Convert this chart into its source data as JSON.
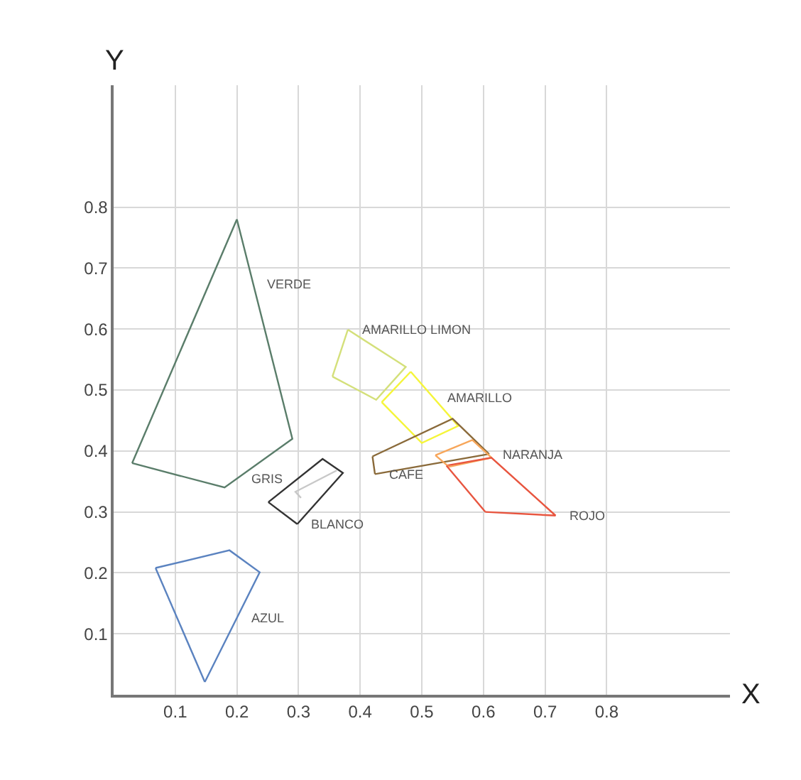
{
  "chart_data": {
    "type": "line",
    "xlabel": "X",
    "ylabel": "Y",
    "xlim": [
      0,
      1
    ],
    "ylim": [
      0,
      1
    ],
    "xticks": [
      0.1,
      0.2,
      0.3,
      0.4,
      0.5,
      0.6,
      0.7,
      0.8
    ],
    "yticks": [
      0.1,
      0.2,
      0.3,
      0.4,
      0.5,
      0.6,
      0.7,
      0.8
    ],
    "grid": true,
    "marker": "none",
    "line_style": "solid",
    "series": [
      {
        "color": "#5a7d6a",
        "x": [
          0.2,
          0.29,
          0.18,
          0.03
        ],
        "values": [
          0.78,
          0.42,
          0.34,
          0.38
        ]
      },
      {
        "color": "#5b83c0",
        "x": [
          0.068,
          0.188,
          0.237,
          0.148
        ],
        "values": [
          0.208,
          0.237,
          0.201,
          0.021
        ]
      },
      {
        "color": "#333333",
        "x": [
          0.251,
          0.339,
          0.372,
          0.298
        ],
        "values": [
          0.316,
          0.387,
          0.364,
          0.28
        ]
      },
      {
        "color": "#c8c8c8",
        "x": [
          0.304,
          0.295,
          0.362
        ],
        "values": [
          0.323,
          0.333,
          0.368
        ]
      },
      {
        "color": "#d4e07a",
        "x": [
          0.38,
          0.474,
          0.426,
          0.355
        ],
        "values": [
          0.599,
          0.538,
          0.484,
          0.522
        ]
      },
      {
        "color": "#f5f53a",
        "x": [
          0.482,
          0.559,
          0.5,
          0.435
        ],
        "values": [
          0.53,
          0.441,
          0.413,
          0.48
        ]
      },
      {
        "color": "#8a6a3a",
        "x": [
          0.42,
          0.55,
          0.609,
          0.424
        ],
        "values": [
          0.391,
          0.453,
          0.395,
          0.362
        ]
      },
      {
        "color": "#f7a65a",
        "x": [
          0.522,
          0.582,
          0.613,
          0.544
        ],
        "values": [
          0.393,
          0.418,
          0.389,
          0.374
        ]
      },
      {
        "color": "#e8553f",
        "x": [
          0.54,
          0.613,
          0.717,
          0.603
        ],
        "values": [
          0.376,
          0.389,
          0.294,
          0.3
        ]
      },
      {
        "color": "#5a7d6a",
        "x": [
          0.03,
          0.2
        ],
        "values": [
          0.38,
          0.78
        ]
      },
      {
        "color": "#5b83c0",
        "x": [
          0.148,
          0.068
        ],
        "values": [
          0.021,
          0.208
        ]
      },
      {
        "color": "#333333",
        "x": [
          0.298,
          0.251
        ],
        "values": [
          0.28,
          0.316
        ]
      },
      {
        "color": "#d4e07a",
        "x": [
          0.355,
          0.38
        ],
        "values": [
          0.522,
          0.599
        ]
      },
      {
        "color": "#f5f53a",
        "x": [
          0.435,
          0.482
        ],
        "values": [
          0.48,
          0.53
        ]
      },
      {
        "color": "#8a6a3a",
        "x": [
          0.424,
          0.42
        ],
        "values": [
          0.362,
          0.391
        ]
      },
      {
        "color": "#f7a65a",
        "x": [
          0.544,
          0.522
        ],
        "values": [
          0.374,
          0.393
        ]
      },
      {
        "color": "#e8553f",
        "x": [
          0.603,
          0.54
        ],
        "values": [
          0.3,
          0.376
        ]
      }
    ],
    "annotations": [
      {
        "text": "VERDE",
        "x": 0.2265,
        "y": 0.674
      },
      {
        "text": "AZUL",
        "x": 0.2,
        "y": 0.126
      },
      {
        "text": "BLANCO",
        "x": 0.298,
        "y": 0.28
      },
      {
        "text": "GRIS",
        "x": 0.2006,
        "y": 0.355
      },
      {
        "text": "AMARILLO LIMON",
        "x": 0.38,
        "y": 0.599
      },
      {
        "text": "AMARILLO",
        "x": 0.518,
        "y": 0.488
      },
      {
        "text": "CAFE",
        "x": 0.424,
        "y": 0.362
      },
      {
        "text": "NARANJA",
        "x": 0.609,
        "y": 0.395
      },
      {
        "text": "ROJO",
        "x": 0.717,
        "y": 0.294
      }
    ]
  }
}
